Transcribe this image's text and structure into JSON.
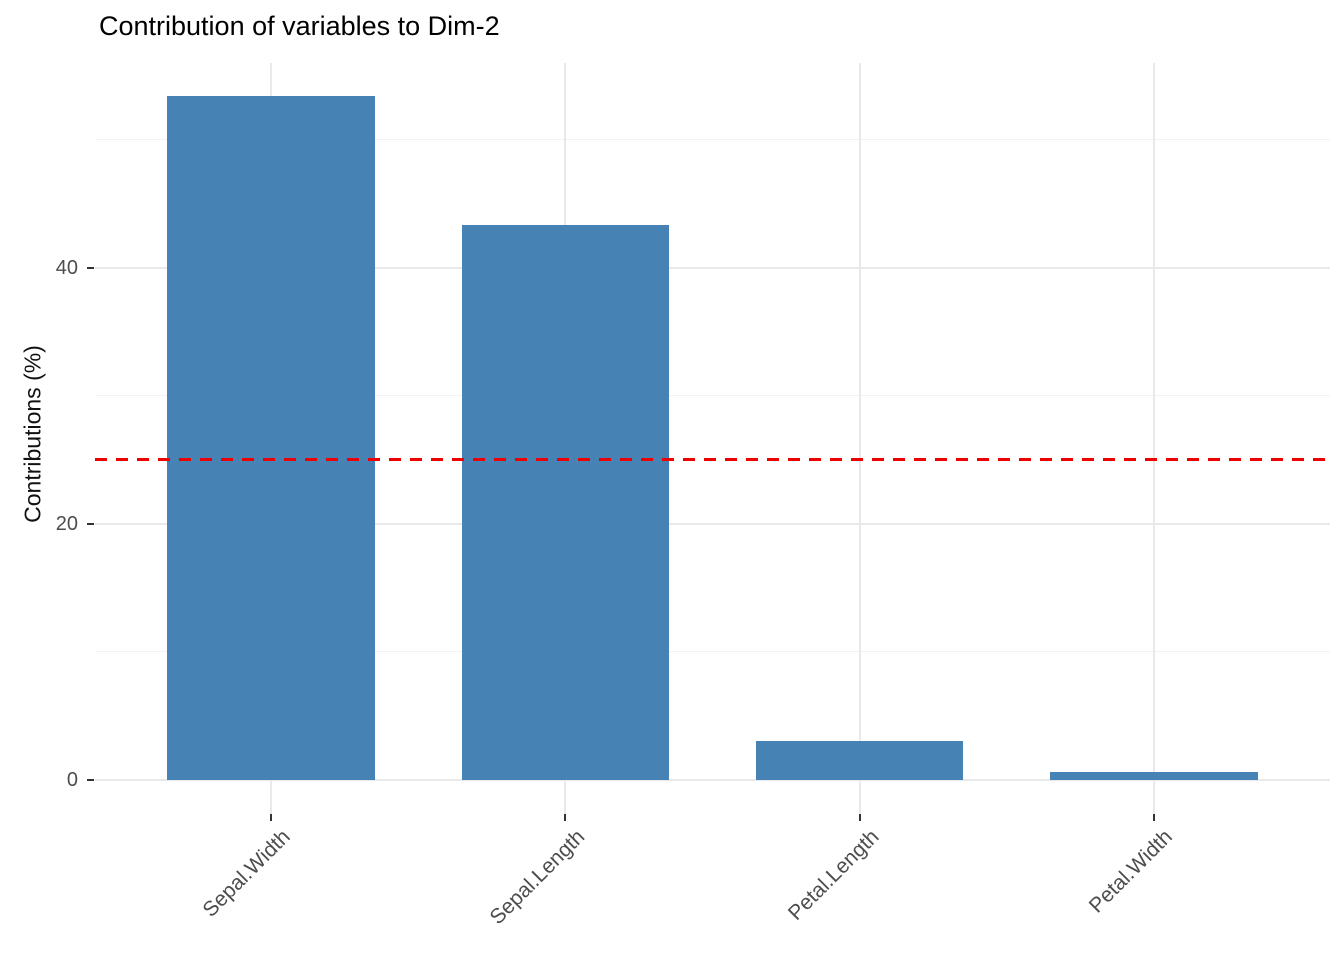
{
  "chart_data": {
    "type": "bar",
    "title": "Contribution of variables to Dim-2",
    "xlabel": "",
    "ylabel": "Contributions (%)",
    "categories": [
      "Sepal.Width",
      "Sepal.Length",
      "Petal.Length",
      "Petal.Width"
    ],
    "values": [
      53.4,
      43.3,
      3.0,
      0.6
    ],
    "yticks": [
      0,
      20,
      40
    ],
    "ylim": [
      0,
      56
    ],
    "grid": true,
    "legend": "none",
    "reference_line": {
      "value": 25,
      "style": "dashed"
    },
    "colors": {
      "bar": "#4682B4",
      "reference_line": "#EE0000",
      "grid_major": "#E9E9E9",
      "grid_minor": "#F2F2F2",
      "axis_text": "#4d4d4d",
      "tick_mark": "#333333",
      "title": "#000000",
      "background": "#FFFFFF"
    }
  }
}
